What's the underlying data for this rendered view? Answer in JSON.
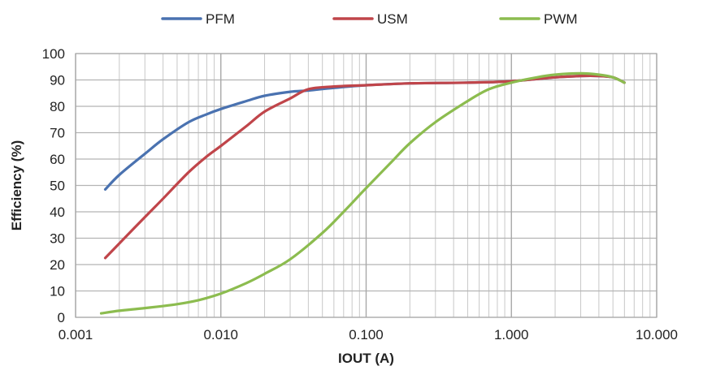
{
  "chart_data": {
    "type": "line",
    "title": "",
    "xlabel": "IOUT (A)",
    "ylabel": "Efficiency (%)",
    "x_scale": "log",
    "xlim": [
      0.001,
      10
    ],
    "ylim": [
      0,
      100
    ],
    "x_ticks": [
      0.001,
      0.01,
      0.1,
      1,
      10
    ],
    "x_tick_labels": [
      "0.001",
      "0.010",
      "0.100",
      "1.000",
      "10.000"
    ],
    "y_ticks": [
      0,
      10,
      20,
      30,
      40,
      50,
      60,
      70,
      80,
      90,
      100
    ],
    "y_tick_labels": [
      "0",
      "10",
      "20",
      "30",
      "40",
      "50",
      "60",
      "70",
      "80",
      "90",
      "100"
    ],
    "grid": true,
    "legend_position": "top",
    "series": [
      {
        "name": "PFM",
        "color": "#4a72b0",
        "x": [
          0.0016,
          0.002,
          0.003,
          0.004,
          0.006,
          0.008,
          0.01,
          0.015,
          0.02,
          0.03,
          0.04,
          0.06,
          0.1,
          0.2,
          0.5,
          1,
          2,
          3,
          4,
          5,
          6
        ],
        "y": [
          48.5,
          54,
          62,
          67.5,
          74,
          77,
          79,
          82,
          84,
          85.5,
          86,
          87,
          88,
          88.7,
          89,
          89.5,
          91,
          91.5,
          91.5,
          91,
          89
        ]
      },
      {
        "name": "USM",
        "color": "#c0454a",
        "x": [
          0.0016,
          0.002,
          0.003,
          0.004,
          0.006,
          0.008,
          0.01,
          0.015,
          0.02,
          0.03,
          0.04,
          0.06,
          0.1,
          0.2,
          0.5,
          1,
          2,
          3,
          4,
          5,
          6
        ],
        "y": [
          22.5,
          28,
          38,
          45,
          55,
          61,
          65,
          72.5,
          78,
          83,
          86.5,
          87.5,
          88,
          88.7,
          89,
          89.5,
          91,
          91.5,
          91.5,
          91,
          89
        ]
      },
      {
        "name": "PWM",
        "color": "#8cbc4f",
        "x": [
          0.0015,
          0.002,
          0.003,
          0.005,
          0.007,
          0.01,
          0.015,
          0.02,
          0.03,
          0.05,
          0.07,
          0.1,
          0.15,
          0.2,
          0.3,
          0.5,
          0.7,
          1,
          1.5,
          2,
          3,
          4,
          5,
          6
        ],
        "y": [
          1.5,
          2.5,
          3.5,
          5,
          6.5,
          9,
          13,
          16.5,
          22,
          32,
          40,
          49,
          59,
          66,
          74,
          82,
          86.5,
          89,
          91,
          92,
          92.5,
          92,
          91,
          89
        ]
      }
    ]
  }
}
